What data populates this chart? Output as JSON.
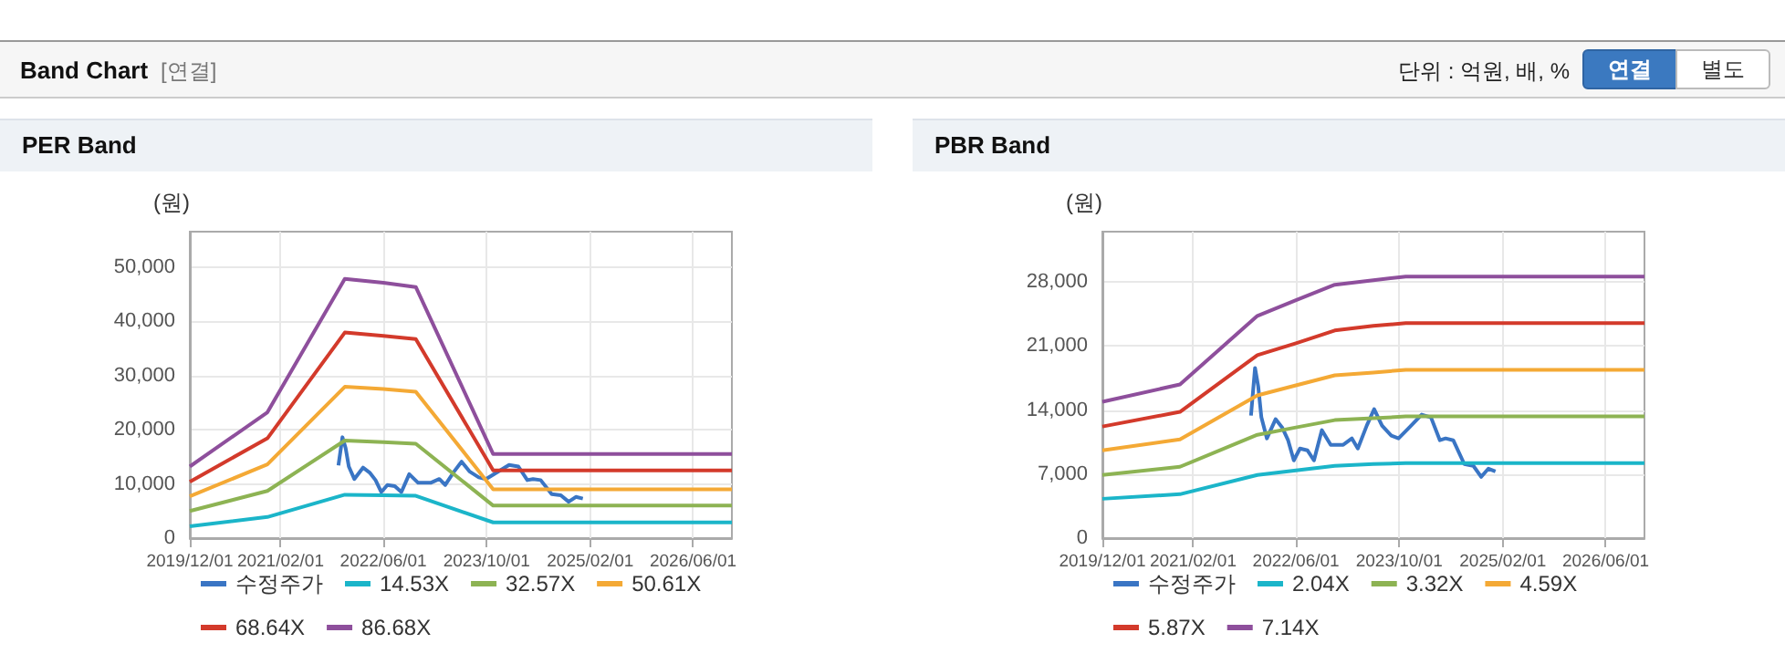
{
  "chart_data": [
    {
      "type": "line",
      "title": "PER Band",
      "ylabel": "(원)",
      "annotations": [
        "Band Chart",
        "[연결]",
        "단위 : 억원, 배, %",
        "연결",
        "별도"
      ],
      "legend": "bottom",
      "grid": true,
      "marker": "none",
      "line_style": "solid",
      "x": [
        "2019-12-01",
        "2020-12-01",
        "2021-12-01",
        "2022-06-01",
        "2022-11-01",
        "2023-11-01",
        "2026-12-01"
      ],
      "xlim": [
        "2019-12-01",
        "2026-12-01"
      ],
      "xticks": [
        {
          "value": "2019-12-01",
          "label": "2019/12/01"
        },
        {
          "value": "2021-02-01",
          "label": "2021/02/01"
        },
        {
          "value": "2022-06-01",
          "label": "2022/06/01"
        },
        {
          "value": "2023-10-01",
          "label": "2023/10/01"
        },
        {
          "value": "2025-02-01",
          "label": "2025/02/01"
        },
        {
          "value": "2026-06-01",
          "label": "2026/06/01"
        }
      ],
      "ylim": [
        0,
        56500
      ],
      "yticks": [
        0,
        {
          "value": 10000,
          "label": "10,000"
        },
        {
          "value": 20000,
          "label": "20,000"
        },
        {
          "value": 30000,
          "label": "30,000"
        },
        {
          "value": 40000,
          "label": "40,000"
        },
        {
          "value": 50000,
          "label": "50,000"
        }
      ],
      "series": [
        {
          "name": "수정주가",
          "color": "#3a75c4",
          "x": [
            "2021-11-01",
            "2021-11-20",
            "2021-12-05",
            "2021-12-20",
            "2022-01-15",
            "2022-02-25",
            "2022-03-28",
            "2022-04-25",
            "2022-05-22",
            "2022-06-20",
            "2022-07-25",
            "2022-08-25",
            "2022-10-01",
            "2022-11-12",
            "2023-01-10",
            "2023-02-20",
            "2023-03-20",
            "2023-05-01",
            "2023-06-05",
            "2023-07-12",
            "2023-08-25",
            "2023-09-28",
            "2023-11-18",
            "2024-01-15",
            "2024-02-28",
            "2024-04-10",
            "2024-05-07",
            "2024-06-12",
            "2024-08-03",
            "2024-09-15",
            "2024-10-22",
            "2024-11-25",
            "2024-12-28"
          ],
          "values": [
            13400,
            18600,
            16600,
            13200,
            10900,
            13000,
            12100,
            10700,
            8500,
            9800,
            9600,
            8500,
            11800,
            10200,
            10200,
            10900,
            9800,
            12300,
            14100,
            12300,
            11200,
            10900,
            12100,
            13500,
            13200,
            10700,
            10900,
            10700,
            8100,
            7900,
            6700,
            7600,
            7300
          ]
        },
        {
          "name": "14.53X",
          "color": "#1bb5c9",
          "values": [
            2200,
            3900,
            8000,
            7900,
            7800,
            2900,
            2900
          ]
        },
        {
          "name": "32.57X",
          "color": "#8db353",
          "values": [
            5000,
            8700,
            18000,
            17700,
            17400,
            6000,
            6000
          ]
        },
        {
          "name": "50.61X",
          "color": "#f4a935",
          "values": [
            7700,
            13600,
            27900,
            27500,
            27000,
            9000,
            9000
          ]
        },
        {
          "name": "68.64X",
          "color": "#d33a2b",
          "values": [
            10400,
            18400,
            37900,
            37300,
            36700,
            12500,
            12500
          ]
        },
        {
          "name": "86.68X",
          "color": "#8e4f9c",
          "values": [
            13200,
            23200,
            47800,
            47100,
            46300,
            15500,
            15500
          ]
        }
      ]
    },
    {
      "type": "line",
      "title": "PBR Band",
      "ylabel": "(원)",
      "legend": "bottom",
      "grid": true,
      "marker": "none",
      "line_style": "solid",
      "x": [
        "2019-12-01",
        "2020-12-01",
        "2021-12-01",
        "2022-06-01",
        "2022-12-01",
        "2023-06-01",
        "2023-11-01",
        "2026-12-01"
      ],
      "xlim": [
        "2019-12-01",
        "2026-12-01"
      ],
      "xticks": [
        {
          "value": "2019-12-01",
          "label": "2019/12/01"
        },
        {
          "value": "2021-02-01",
          "label": "2021/02/01"
        },
        {
          "value": "2022-06-01",
          "label": "2022/06/01"
        },
        {
          "value": "2023-10-01",
          "label": "2023/10/01"
        },
        {
          "value": "2025-02-01",
          "label": "2025/02/01"
        },
        {
          "value": "2026-06-01",
          "label": "2026/06/01"
        }
      ],
      "ylim": [
        0,
        33500
      ],
      "yticks": [
        0,
        {
          "value": 7000,
          "label": "7,000"
        },
        {
          "value": 14000,
          "label": "14,000"
        },
        {
          "value": 21000,
          "label": "21,000"
        },
        {
          "value": 28000,
          "label": "28,000"
        }
      ],
      "series": [
        {
          "name": "수정주가",
          "color": "#3a75c4",
          "x": [
            "2021-11-01",
            "2021-11-20",
            "2021-12-05",
            "2021-12-20",
            "2022-01-15",
            "2022-02-25",
            "2022-03-28",
            "2022-04-25",
            "2022-05-22",
            "2022-06-20",
            "2022-07-25",
            "2022-08-25",
            "2022-10-01",
            "2022-11-12",
            "2023-01-10",
            "2023-02-20",
            "2023-03-20",
            "2023-05-01",
            "2023-06-05",
            "2023-07-12",
            "2023-08-25",
            "2023-09-28",
            "2023-11-18",
            "2024-01-15",
            "2024-02-28",
            "2024-04-10",
            "2024-05-07",
            "2024-06-12",
            "2024-08-03",
            "2024-09-15",
            "2024-10-22",
            "2024-11-25",
            "2024-12-28"
          ],
          "values": [
            13400,
            18600,
            16600,
            13200,
            10900,
            13000,
            12100,
            10700,
            8500,
            9800,
            9600,
            8500,
            11800,
            10200,
            10200,
            10900,
            9800,
            12300,
            14100,
            12300,
            11200,
            10900,
            12100,
            13500,
            13200,
            10700,
            10900,
            10700,
            8100,
            7900,
            6700,
            7600,
            7300
          ]
        },
        {
          "name": "2.04X",
          "color": "#1bb5c9",
          "values": [
            4300,
            4800,
            6900,
            7400,
            7900,
            8100,
            8200,
            8200
          ]
        },
        {
          "name": "3.32X",
          "color": "#8db353",
          "values": [
            6900,
            7800,
            11300,
            12100,
            12900,
            13100,
            13300,
            13300
          ]
        },
        {
          "name": "4.59X",
          "color": "#f4a935",
          "values": [
            9600,
            10800,
            15600,
            16700,
            17800,
            18100,
            18400,
            18400
          ]
        },
        {
          "name": "5.87X",
          "color": "#d33a2b",
          "values": [
            12200,
            13800,
            20000,
            21300,
            22700,
            23200,
            23500,
            23500
          ]
        },
        {
          "name": "7.14X",
          "color": "#8e4f9c",
          "values": [
            14900,
            16800,
            24300,
            26000,
            27700,
            28200,
            28600,
            28600
          ]
        }
      ]
    }
  ]
}
